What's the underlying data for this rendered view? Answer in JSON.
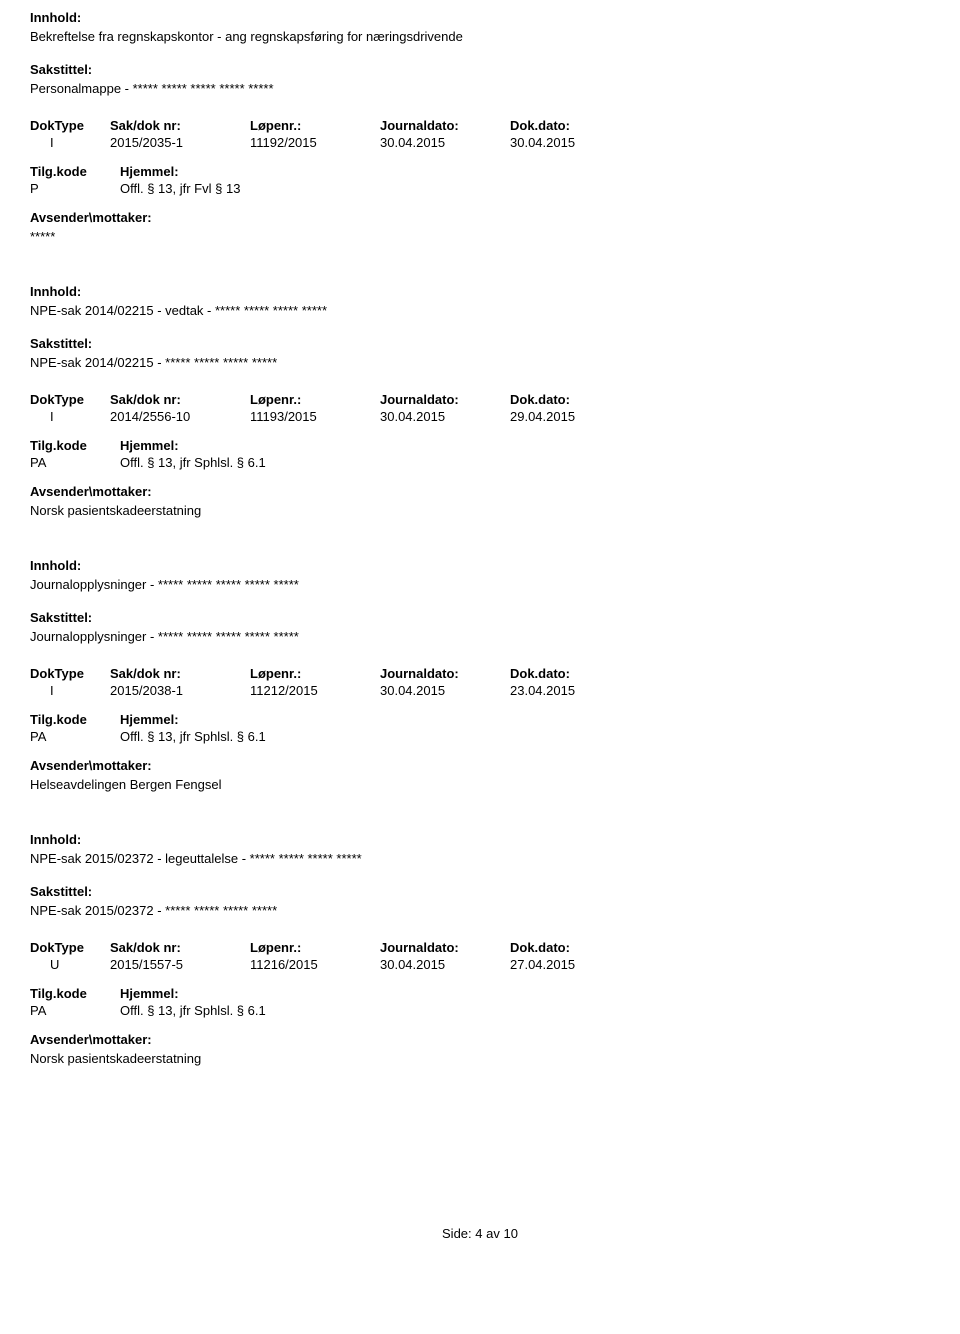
{
  "labels": {
    "innhold": "Innhold:",
    "sakstittel": "Sakstittel:",
    "doktype": "DokType",
    "sakdok": "Sak/dok nr:",
    "lopenr": "Løpenr.:",
    "journaldato": "Journaldato:",
    "dokdato": "Dok.dato:",
    "tilgkode": "Tilg.kode",
    "hjemmel": "Hjemmel:",
    "avsender": "Avsender\\mottaker:"
  },
  "entries": [
    {
      "innhold": "Bekreftelse fra regnskapskontor - ang regnskapsføring for næringsdrivende",
      "sakstittel": "Personalmappe - ***** ***** ***** ***** *****",
      "doktype": "I",
      "sakdok": "2015/2035-1",
      "lopenr": "11192/2015",
      "journaldato": "30.04.2015",
      "dokdato": "30.04.2015",
      "tilgkode": "P",
      "hjemmel": "Offl. § 13, jfr Fvl § 13",
      "avsender": "*****"
    },
    {
      "innhold": "NPE-sak 2014/02215 - vedtak -  ***** ***** ***** *****",
      "sakstittel": "NPE-sak 2014/02215 - ***** ***** ***** *****",
      "doktype": "I",
      "sakdok": "2014/2556-10",
      "lopenr": "11193/2015",
      "journaldato": "30.04.2015",
      "dokdato": "29.04.2015",
      "tilgkode": "PA",
      "hjemmel": "Offl. § 13, jfr Sphlsl. § 6.1",
      "avsender": "Norsk pasientskadeerstatning"
    },
    {
      "innhold": "Journalopplysninger - ***** ***** ***** ***** *****",
      "sakstittel": "Journalopplysninger - ***** ***** ***** ***** *****",
      "doktype": "I",
      "sakdok": "2015/2038-1",
      "lopenr": "11212/2015",
      "journaldato": "30.04.2015",
      "dokdato": "23.04.2015",
      "tilgkode": "PA",
      "hjemmel": "Offl. § 13, jfr Sphlsl. § 6.1",
      "avsender": "Helseavdelingen Bergen Fengsel"
    },
    {
      "innhold": "NPE-sak 2015/02372 - legeuttalelse -  ***** ***** ***** *****",
      "sakstittel": "NPE-sak 2015/02372 - ***** ***** ***** *****",
      "doktype": "U",
      "sakdok": "2015/1557-5",
      "lopenr": "11216/2015",
      "journaldato": "30.04.2015",
      "dokdato": "27.04.2015",
      "tilgkode": "PA",
      "hjemmel": "Offl. § 13, jfr Sphlsl. § 6.1",
      "avsender": "Norsk pasientskadeerstatning"
    }
  ],
  "footer": {
    "prefix": "Side:",
    "current": "4",
    "sep": "av",
    "total": "10"
  }
}
